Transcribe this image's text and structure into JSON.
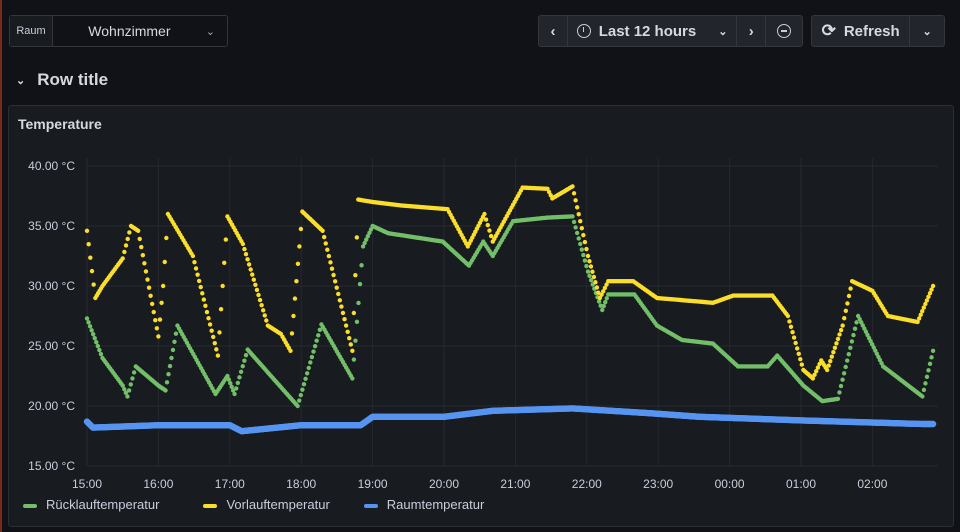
{
  "variable": {
    "label": "Raum",
    "value": "Wohnzimmer"
  },
  "time_picker": {
    "range": "Last 12 hours",
    "icons": [
      "chevron-left-icon",
      "clock-icon",
      "chevron-down-icon",
      "chevron-right-icon",
      "zoom-out-icon"
    ]
  },
  "refresh": {
    "label": "Refresh"
  },
  "row": {
    "title": "Row title"
  },
  "panel": {
    "title": "Temperature"
  },
  "chart_data": {
    "type": "scatter",
    "title": "Temperature",
    "ylim": [
      15,
      40
    ],
    "y_ticks": [
      "40.00 °C",
      "35.00 °C",
      "30.00 °C",
      "25.00 °C",
      "20.00 °C",
      "15.00 °C"
    ],
    "y_tick_values": [
      40,
      35,
      30,
      25,
      20,
      15
    ],
    "x_ticks": [
      "15:00",
      "16:00",
      "17:00",
      "18:00",
      "19:00",
      "20:00",
      "21:00",
      "22:00",
      "23:00",
      "00:00",
      "01:00",
      "02:00"
    ],
    "grid": true,
    "legend_placement": "bottom-left",
    "series": [
      {
        "name": "Rücklauftemperatur",
        "color": "#73bf69",
        "points": [
          [
            "15:00",
            27.3
          ],
          [
            "15:13",
            24
          ],
          [
            "15:30",
            21.7
          ],
          [
            "15:34",
            20.8
          ],
          [
            "15:41",
            23.3
          ],
          [
            "16:00",
            21.7
          ],
          [
            "16:06",
            21.3
          ],
          [
            "16:16",
            26.7
          ],
          [
            "16:48",
            21
          ],
          [
            "16:58",
            22.5
          ],
          [
            "17:04",
            21
          ],
          [
            "17:15",
            24.7
          ],
          [
            "17:57",
            20
          ],
          [
            "18:17",
            26.8
          ],
          [
            "18:43",
            22.3
          ],
          [
            "18:52",
            33.3
          ],
          [
            "19:00",
            35
          ],
          [
            "19:13",
            34.4
          ],
          [
            "19:59",
            33.7
          ],
          [
            "20:21",
            31.7
          ],
          [
            "20:33",
            33.7
          ],
          [
            "20:41",
            32.5
          ],
          [
            "20:58",
            35.4
          ],
          [
            "21:27",
            35.7
          ],
          [
            "21:48",
            35.8
          ],
          [
            "22:01",
            31.2
          ],
          [
            "22:13",
            28
          ],
          [
            "22:18",
            29.3
          ],
          [
            "22:40",
            29.3
          ],
          [
            "22:59",
            26.7
          ],
          [
            "23:20",
            25.5
          ],
          [
            "23:46",
            25.2
          ],
          [
            "00:07",
            23.3
          ],
          [
            "00:32",
            23.3
          ],
          [
            "00:40",
            24.2
          ],
          [
            "01:02",
            21.7
          ],
          [
            "01:18",
            20.4
          ],
          [
            "01:31",
            20.6
          ],
          [
            "01:48",
            27.5
          ],
          [
            "02:09",
            23.3
          ],
          [
            "02:42",
            20.8
          ],
          [
            "02:51",
            24.6
          ]
        ]
      },
      {
        "name": "Vorlauftemperatur",
        "color": "#fade2a",
        "points": [
          [
            "15:00",
            34.6
          ],
          [
            "15:07",
            29
          ],
          [
            "15:13",
            30
          ],
          [
            "15:30",
            32.3
          ],
          [
            "15:37",
            35
          ],
          [
            "15:43",
            34.6
          ],
          [
            "16:00",
            25.8
          ],
          [
            "16:04",
            30
          ],
          [
            "16:08",
            36
          ],
          [
            "16:29",
            32.5
          ],
          [
            "16:50",
            24.2
          ],
          [
            "16:58",
            35.8
          ],
          [
            "17:11",
            33.5
          ],
          [
            "17:32",
            26.7
          ],
          [
            "17:43",
            26
          ],
          [
            "17:51",
            24.6
          ],
          [
            "18:01",
            36.2
          ],
          [
            "18:18",
            34.6
          ],
          [
            "18:43",
            24.6
          ],
          [
            "18:48",
            37.2
          ],
          [
            "19:00",
            37
          ],
          [
            "19:25",
            36.7
          ],
          [
            "20:03",
            36.4
          ],
          [
            "20:20",
            33.3
          ],
          [
            "20:34",
            36
          ],
          [
            "20:41",
            33.7
          ],
          [
            "21:06",
            38.2
          ],
          [
            "21:27",
            38.1
          ],
          [
            "21:31",
            37.3
          ],
          [
            "21:48",
            38.3
          ],
          [
            "22:01",
            32.5
          ],
          [
            "22:11",
            29
          ],
          [
            "22:18",
            30.4
          ],
          [
            "22:39",
            30.4
          ],
          [
            "22:59",
            29
          ],
          [
            "23:46",
            28.6
          ],
          [
            "00:03",
            29.2
          ],
          [
            "00:36",
            29.2
          ],
          [
            "00:49",
            27.5
          ],
          [
            "01:02",
            23
          ],
          [
            "01:10",
            22.3
          ],
          [
            "01:17",
            23.8
          ],
          [
            "01:22",
            23
          ],
          [
            "01:35",
            26.7
          ],
          [
            "01:43",
            30.4
          ],
          [
            "02:00",
            29.6
          ],
          [
            "02:13",
            27.5
          ],
          [
            "02:38",
            27
          ],
          [
            "02:51",
            30
          ]
        ]
      },
      {
        "name": "Raumtemperatur",
        "color": "#5794f2",
        "points": [
          [
            "15:00",
            18.7
          ],
          [
            "15:05",
            18.2
          ],
          [
            "16:00",
            18.4
          ],
          [
            "17:00",
            18.4
          ],
          [
            "17:10",
            17.9
          ],
          [
            "18:00",
            18.4
          ],
          [
            "18:50",
            18.4
          ],
          [
            "19:00",
            19.1
          ],
          [
            "20:00",
            19.1
          ],
          [
            "20:41",
            19.6
          ],
          [
            "21:48",
            19.8
          ],
          [
            "22:53",
            19.4
          ],
          [
            "23:35",
            19.1
          ],
          [
            "01:00",
            18.8
          ],
          [
            "02:42",
            18.5
          ],
          [
            "02:51",
            18.5
          ]
        ]
      }
    ]
  }
}
